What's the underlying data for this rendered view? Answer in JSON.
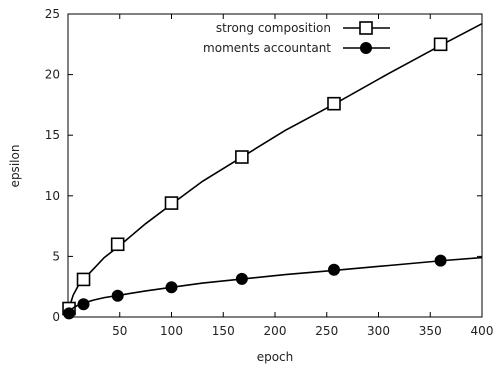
{
  "chart_data": {
    "type": "line",
    "xlabel": "epoch",
    "ylabel": "epsilon",
    "xlim": [
      0,
      400
    ],
    "ylim": [
      0,
      25
    ],
    "xticks": [
      50,
      100,
      150,
      200,
      250,
      300,
      350,
      400
    ],
    "yticks": [
      0,
      5,
      10,
      15,
      20,
      25
    ],
    "xtick_labels": [
      "50",
      "100",
      "150",
      "200",
      "250",
      "300",
      "350",
      "400"
    ],
    "ytick_labels": [
      "0",
      "5",
      "10",
      "15",
      "20",
      "25"
    ],
    "grid": false,
    "legend_position": "top-right",
    "series": [
      {
        "name": "strong composition",
        "marker": "open-square",
        "color": "#000000",
        "curve_x": [
          0,
          2,
          5,
          10,
          15,
          25,
          35,
          50,
          75,
          100,
          130,
          170,
          210,
          258,
          310,
          362,
          400
        ],
        "curve_y": [
          0.3,
          1.0,
          1.8,
          2.6,
          3.1,
          4.0,
          4.9,
          5.9,
          7.7,
          9.3,
          11.2,
          13.3,
          15.4,
          17.6,
          20.1,
          22.5,
          24.2
        ],
        "markers_x": [
          1,
          15,
          48,
          100,
          168,
          257,
          360
        ],
        "markers_y": [
          0.7,
          3.1,
          6.0,
          9.4,
          13.2,
          17.6,
          22.5
        ]
      },
      {
        "name": "moments accountant",
        "marker": "filled-circle",
        "color": "#000000",
        "curve_x": [
          0,
          2,
          5,
          10,
          15,
          25,
          35,
          50,
          75,
          100,
          130,
          170,
          210,
          258,
          310,
          362,
          400
        ],
        "curve_y": [
          0.15,
          0.45,
          0.75,
          1.0,
          1.15,
          1.4,
          1.6,
          1.8,
          2.15,
          2.45,
          2.8,
          3.15,
          3.5,
          3.85,
          4.25,
          4.65,
          4.9
        ],
        "markers_x": [
          1,
          15,
          48,
          100,
          168,
          257,
          360
        ],
        "markers_y": [
          0.3,
          1.05,
          1.75,
          2.45,
          3.15,
          3.9,
          4.65
        ]
      }
    ]
  }
}
